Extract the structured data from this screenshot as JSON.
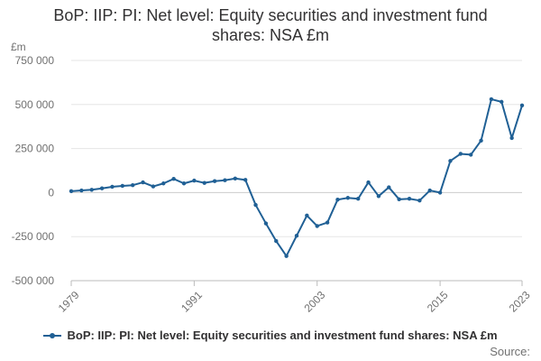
{
  "chart_data": {
    "type": "line",
    "title_lines": [
      "BoP: IIP: PI: Net level: Equity securities and investment fund",
      "shares: NSA £m"
    ],
    "ylabel": "£m",
    "xlabel": "",
    "ylim": [
      -500000,
      750000
    ],
    "xlim": [
      1979,
      2023
    ],
    "yticks": [
      -500000,
      -250000,
      0,
      250000,
      500000,
      750000
    ],
    "ytick_labels": [
      "-500 000",
      "-250 000",
      "0",
      "250 000",
      "500 000",
      "750 000"
    ],
    "xticks": [
      1979,
      1991,
      2003,
      2015,
      2023
    ],
    "xtick_labels": [
      "1979",
      "1991",
      "2003",
      "2015",
      "2023"
    ],
    "grid": true,
    "legend_position": "bottom",
    "series": [
      {
        "name": "BoP: IIP: PI: Net level: Equity securities and investment fund shares: NSA £m",
        "color": "#206095",
        "x": [
          1979,
          1980,
          1981,
          1982,
          1983,
          1984,
          1985,
          1986,
          1987,
          1988,
          1989,
          1990,
          1991,
          1992,
          1993,
          1994,
          1995,
          1996,
          1997,
          1998,
          1999,
          2000,
          2001,
          2002,
          2003,
          2004,
          2005,
          2006,
          2007,
          2008,
          2009,
          2010,
          2011,
          2012,
          2013,
          2014,
          2015,
          2016,
          2017,
          2018,
          2019,
          2020,
          2021,
          2022,
          2023
        ],
        "values": [
          8000,
          12000,
          16000,
          24000,
          33000,
          38000,
          42000,
          58000,
          35000,
          52000,
          78000,
          52000,
          68000,
          55000,
          65000,
          70000,
          80000,
          72000,
          -70000,
          -175000,
          -275000,
          -360000,
          -245000,
          -130000,
          -190000,
          -170000,
          -40000,
          -30000,
          -35000,
          58000,
          -20000,
          30000,
          -38000,
          -35000,
          -45000,
          12000,
          0,
          180000,
          220000,
          215000,
          295000,
          530000,
          515000,
          310000,
          495000
        ]
      }
    ]
  },
  "legend": {
    "label": "BoP: IIP: PI: Net level: Equity securities and investment fund shares: NSA £m"
  },
  "footer": {
    "source": "Source:"
  }
}
